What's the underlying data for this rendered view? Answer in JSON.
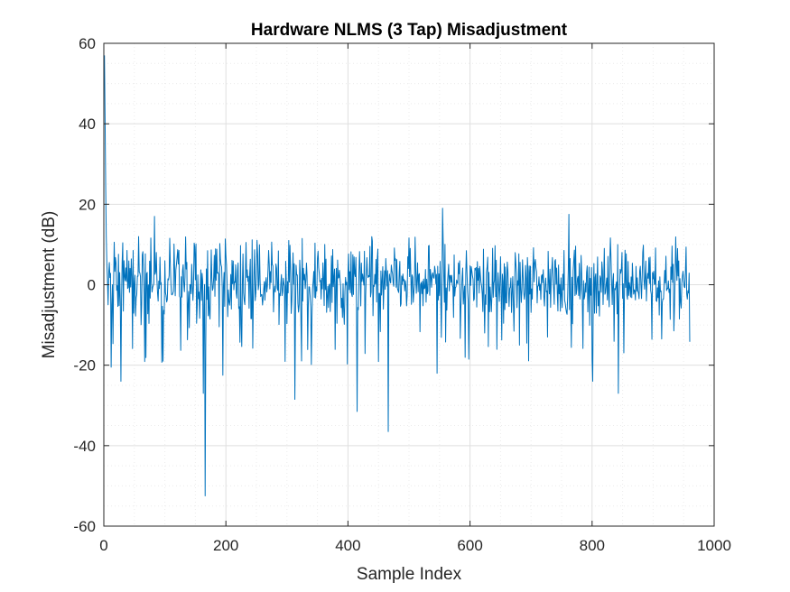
{
  "chart_data": {
    "type": "line",
    "title": "Hardware NLMS (3 Tap) Misadjustment",
    "xlabel": "Sample Index",
    "ylabel": "Misadjustment (dB)",
    "xlim": [
      0,
      1000
    ],
    "ylim": [
      -60,
      60
    ],
    "xticks": [
      0,
      200,
      400,
      600,
      800,
      1000
    ],
    "yticks": [
      -60,
      -40,
      -20,
      0,
      20,
      40,
      60
    ],
    "grid": true,
    "minor_grid": true,
    "box": true,
    "colors": {
      "series": "#0072bd",
      "major_grid": "#dfdfdf",
      "minor_grid": "#ececec",
      "axis": "#262626"
    },
    "series": [
      {
        "n_points": 960,
        "x_start": 1,
        "x_step": 1,
        "typical_range": [
          -12,
          10
        ],
        "initial_values": [
          {
            "x": 1,
            "y": 57
          },
          {
            "x": 2,
            "y": 42
          },
          {
            "x": 3,
            "y": 25
          },
          {
            "x": 4,
            "y": 12
          },
          {
            "x": 5,
            "y": 5
          },
          {
            "x": 6,
            "y": 1
          },
          {
            "x": 7,
            "y": -5
          },
          {
            "x": 8,
            "y": 3
          }
        ],
        "peaks": [
          {
            "x": 12,
            "y": -20.5
          },
          {
            "x": 28,
            "y": -24
          },
          {
            "x": 83,
            "y": 17
          },
          {
            "x": 97,
            "y": -19
          },
          {
            "x": 163,
            "y": -27
          },
          {
            "x": 166,
            "y": -52.5
          },
          {
            "x": 195,
            "y": -22.5
          },
          {
            "x": 313,
            "y": -28.5
          },
          {
            "x": 415,
            "y": -31.5
          },
          {
            "x": 466,
            "y": -36.5
          },
          {
            "x": 546,
            "y": -22
          },
          {
            "x": 555,
            "y": 19
          },
          {
            "x": 598,
            "y": -18.5
          },
          {
            "x": 762,
            "y": 17.5
          },
          {
            "x": 843,
            "y": -27
          },
          {
            "x": 801,
            "y": -24
          }
        ]
      }
    ]
  }
}
